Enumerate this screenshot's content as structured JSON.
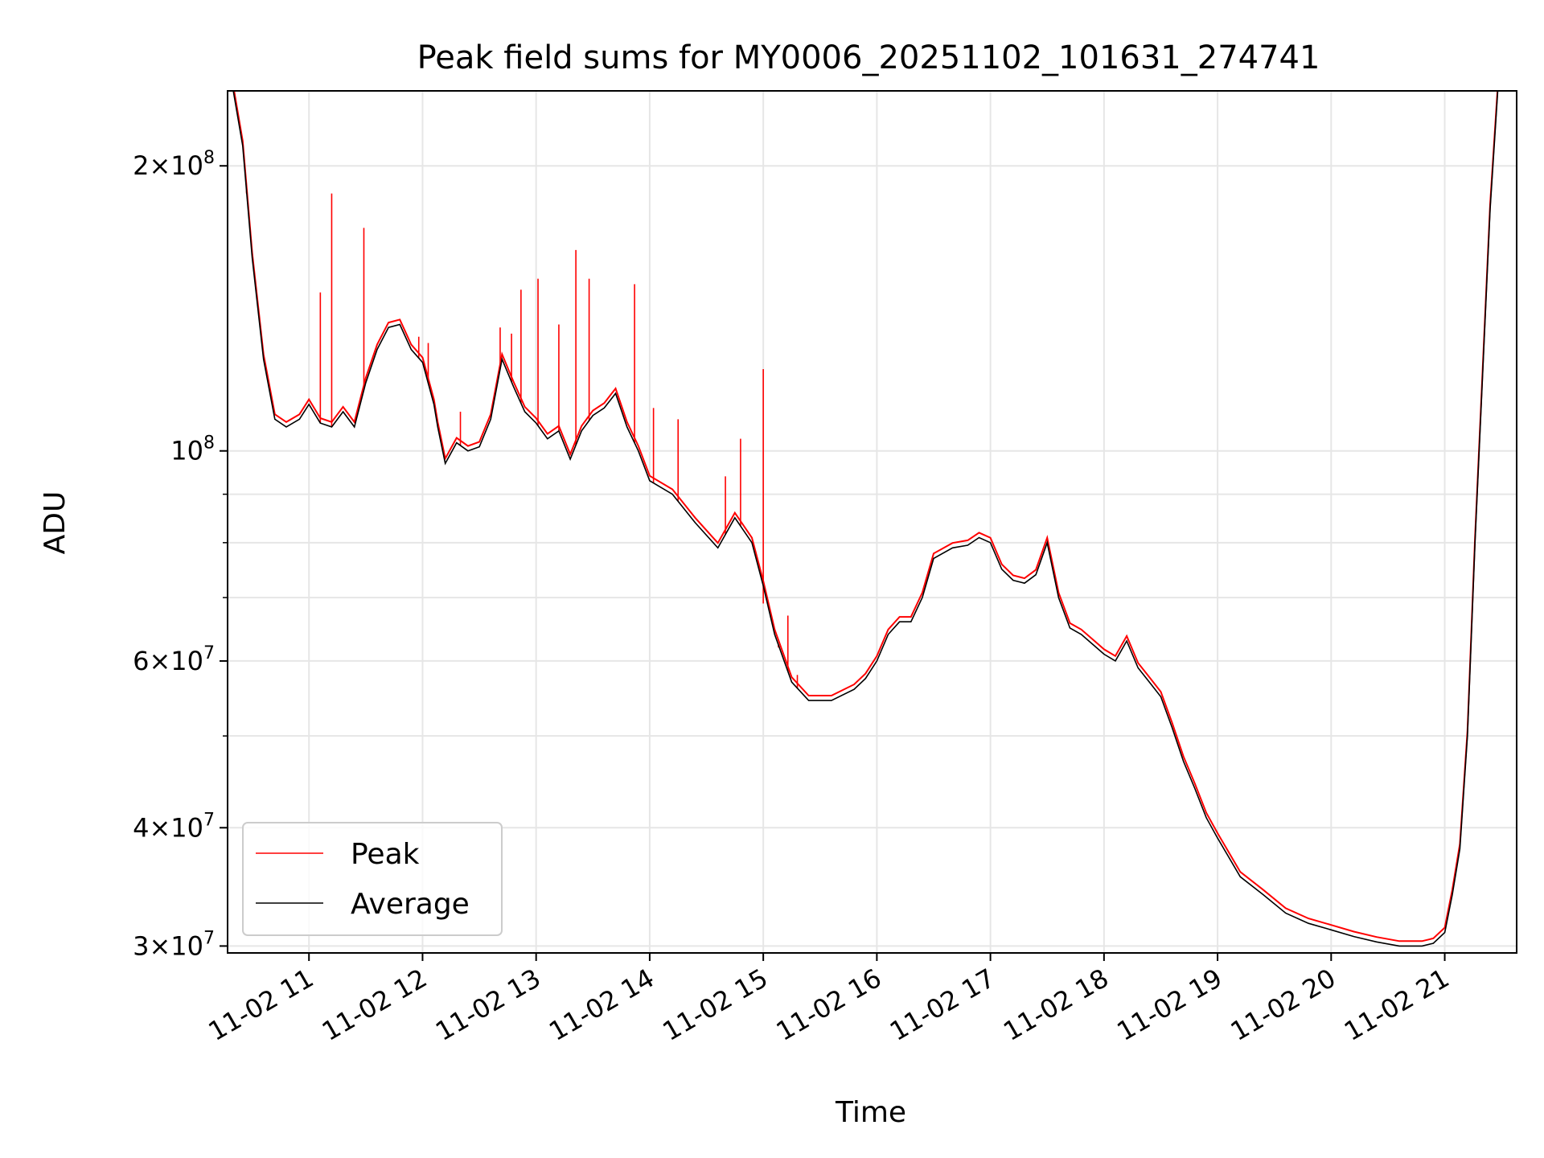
{
  "chart_data": {
    "type": "line",
    "title": "Peak field sums for MY0006_20251102_101631_274741",
    "xlabel": "Time",
    "ylabel": "ADU",
    "y_scale": "log",
    "ylim": [
      29500000,
      240000000
    ],
    "xlim": [
      "2025-11-02 10:17",
      "2025-11-02 21:38"
    ],
    "grid": true,
    "legend_position": "lower-left",
    "x_ticks": [
      "2025-11-02 11:00",
      "2025-11-02 12:00",
      "2025-11-02 13:00",
      "2025-11-02 14:00",
      "2025-11-02 15:00",
      "2025-11-02 16:00",
      "2025-11-02 17:00",
      "2025-11-02 18:00",
      "2025-11-02 19:00",
      "2025-11-02 20:00",
      "2025-11-02 21:00"
    ],
    "x_tick_labels": [
      "11-02 11",
      "11-02 12",
      "11-02 13",
      "11-02 14",
      "11-02 15",
      "11-02 16",
      "11-02 17",
      "11-02 18",
      "11-02 19",
      "11-02 20",
      "11-02 21"
    ],
    "y_major_ticks": [
      {
        "value": 30000000,
        "mantissa": "3",
        "exponent": "7"
      },
      {
        "value": 40000000,
        "mantissa": "4",
        "exponent": "7"
      },
      {
        "value": 60000000,
        "mantissa": "6",
        "exponent": "7"
      },
      {
        "value": 100000000,
        "mantissa": "",
        "exponent": "8"
      },
      {
        "value": 200000000,
        "mantissa": "2",
        "exponent": "8"
      }
    ],
    "y_minor_ticks": [
      50000000,
      70000000,
      80000000,
      90000000
    ],
    "series": [
      {
        "name": "Average",
        "color": "#000000",
        "x": [
          "2025-11-02 10:20",
          "2025-11-02 10:25",
          "2025-11-02 10:30",
          "2025-11-02 10:36",
          "2025-11-02 10:42",
          "2025-11-02 10:48",
          "2025-11-02 10:55",
          "2025-11-02 11:00",
          "2025-11-02 11:06",
          "2025-11-02 11:12",
          "2025-11-02 11:18",
          "2025-11-02 11:24",
          "2025-11-02 11:30",
          "2025-11-02 11:36",
          "2025-11-02 11:42",
          "2025-11-02 11:48",
          "2025-11-02 11:54",
          "2025-11-02 12:00",
          "2025-11-02 12:06",
          "2025-11-02 12:08",
          "2025-11-02 12:12",
          "2025-11-02 12:18",
          "2025-11-02 12:24",
          "2025-11-02 12:30",
          "2025-11-02 12:36",
          "2025-11-02 12:42",
          "2025-11-02 12:48",
          "2025-11-02 12:54",
          "2025-11-02 13:00",
          "2025-11-02 13:06",
          "2025-11-02 13:12",
          "2025-11-02 13:18",
          "2025-11-02 13:24",
          "2025-11-02 13:30",
          "2025-11-02 13:36",
          "2025-11-02 13:42",
          "2025-11-02 13:48",
          "2025-11-02 13:54",
          "2025-11-02 14:00",
          "2025-11-02 14:12",
          "2025-11-02 14:24",
          "2025-11-02 14:36",
          "2025-11-02 14:45",
          "2025-11-02 14:54",
          "2025-11-02 15:00",
          "2025-11-02 15:06",
          "2025-11-02 15:15",
          "2025-11-02 15:24",
          "2025-11-02 15:36",
          "2025-11-02 15:48",
          "2025-11-02 15:54",
          "2025-11-02 16:00",
          "2025-11-02 16:06",
          "2025-11-02 16:12",
          "2025-11-02 16:18",
          "2025-11-02 16:24",
          "2025-11-02 16:30",
          "2025-11-02 16:40",
          "2025-11-02 16:48",
          "2025-11-02 16:54",
          "2025-11-02 17:00",
          "2025-11-02 17:06",
          "2025-11-02 17:12",
          "2025-11-02 17:18",
          "2025-11-02 17:24",
          "2025-11-02 17:30",
          "2025-11-02 17:36",
          "2025-11-02 17:42",
          "2025-11-02 17:48",
          "2025-11-02 17:54",
          "2025-11-02 18:00",
          "2025-11-02 18:06",
          "2025-11-02 18:12",
          "2025-11-02 18:18",
          "2025-11-02 18:24",
          "2025-11-02 18:30",
          "2025-11-02 18:36",
          "2025-11-02 18:42",
          "2025-11-02 18:48",
          "2025-11-02 18:54",
          "2025-11-02 19:00",
          "2025-11-02 19:12",
          "2025-11-02 19:24",
          "2025-11-02 19:36",
          "2025-11-02 19:48",
          "2025-11-02 20:00",
          "2025-11-02 20:12",
          "2025-11-02 20:24",
          "2025-11-02 20:36",
          "2025-11-02 20:48",
          "2025-11-02 20:54",
          "2025-11-02 21:00",
          "2025-11-02 21:04",
          "2025-11-02 21:08",
          "2025-11-02 21:12",
          "2025-11-02 21:16",
          "2025-11-02 21:20",
          "2025-11-02 21:24",
          "2025-11-02 21:28",
          "2025-11-02 21:35"
        ],
        "y": [
          240000000,
          210000000,
          160000000,
          125000000,
          108000000,
          106000000,
          108000000,
          112000000,
          107000000,
          106000000,
          110000000,
          106000000,
          118000000,
          128000000,
          135000000,
          136000000,
          128000000,
          124000000,
          112000000,
          106000000,
          97000000,
          102000000,
          100000000,
          101000000,
          108000000,
          125000000,
          117000000,
          110000000,
          107000000,
          103000000,
          105000000,
          98000000,
          105000000,
          109000000,
          111000000,
          115000000,
          106000000,
          100000000,
          93000000,
          90000000,
          84000000,
          79000000,
          85000000,
          80000000,
          72000000,
          64000000,
          57000000,
          54500000,
          54500000,
          56000000,
          57500000,
          60000000,
          64000000,
          66000000,
          66000000,
          70000000,
          77000000,
          79000000,
          79500000,
          81000000,
          80000000,
          75000000,
          73000000,
          72500000,
          74000000,
          80000000,
          70000000,
          65000000,
          64000000,
          62500000,
          61000000,
          60000000,
          63000000,
          59000000,
          57000000,
          55000000,
          51000000,
          47000000,
          44000000,
          41000000,
          39000000,
          35500000,
          34000000,
          32500000,
          31700000,
          31200000,
          30700000,
          30300000,
          30000000,
          30000000,
          30200000,
          31000000,
          34000000,
          38000000,
          50000000,
          80000000,
          120000000,
          180000000,
          240000000,
          240000000
        ]
      },
      {
        "name": "Peak",
        "color": "#ff0000",
        "spikes": [
          {
            "x": "2025-11-02 10:27",
            "y": 187000000
          },
          {
            "x": "2025-11-02 11:06",
            "y": 147000000
          },
          {
            "x": "2025-11-02 11:12",
            "y": 187000000
          },
          {
            "x": "2025-11-02 11:29",
            "y": 172000000
          },
          {
            "x": "2025-11-02 11:58",
            "y": 132000000
          },
          {
            "x": "2025-11-02 12:03",
            "y": 130000000
          },
          {
            "x": "2025-11-02 12:20",
            "y": 110000000
          },
          {
            "x": "2025-11-02 12:41",
            "y": 135000000
          },
          {
            "x": "2025-11-02 12:47",
            "y": 133000000
          },
          {
            "x": "2025-11-02 12:52",
            "y": 148000000
          },
          {
            "x": "2025-11-02 13:01",
            "y": 152000000
          },
          {
            "x": "2025-11-02 13:12",
            "y": 136000000
          },
          {
            "x": "2025-11-02 13:21",
            "y": 163000000
          },
          {
            "x": "2025-11-02 13:28",
            "y": 152000000
          },
          {
            "x": "2025-11-02 13:52",
            "y": 150000000
          },
          {
            "x": "2025-11-02 14:02",
            "y": 111000000
          },
          {
            "x": "2025-11-02 14:15",
            "y": 108000000
          },
          {
            "x": "2025-11-02 14:40",
            "y": 94000000
          },
          {
            "x": "2025-11-02 14:48",
            "y": 103000000
          },
          {
            "x": "2025-11-02 15:00",
            "y": 122000000
          },
          {
            "x": "2025-11-02 15:00",
            "y": 69000000
          },
          {
            "x": "2025-11-02 15:08",
            "y": 62000000
          },
          {
            "x": "2025-11-02 15:13",
            "y": 67000000
          },
          {
            "x": "2025-11-02 15:18",
            "y": 58000000
          }
        ]
      }
    ],
    "legend": [
      {
        "label": "Peak",
        "color": "#ff0000"
      },
      {
        "label": "Average",
        "color": "#000000"
      }
    ]
  }
}
